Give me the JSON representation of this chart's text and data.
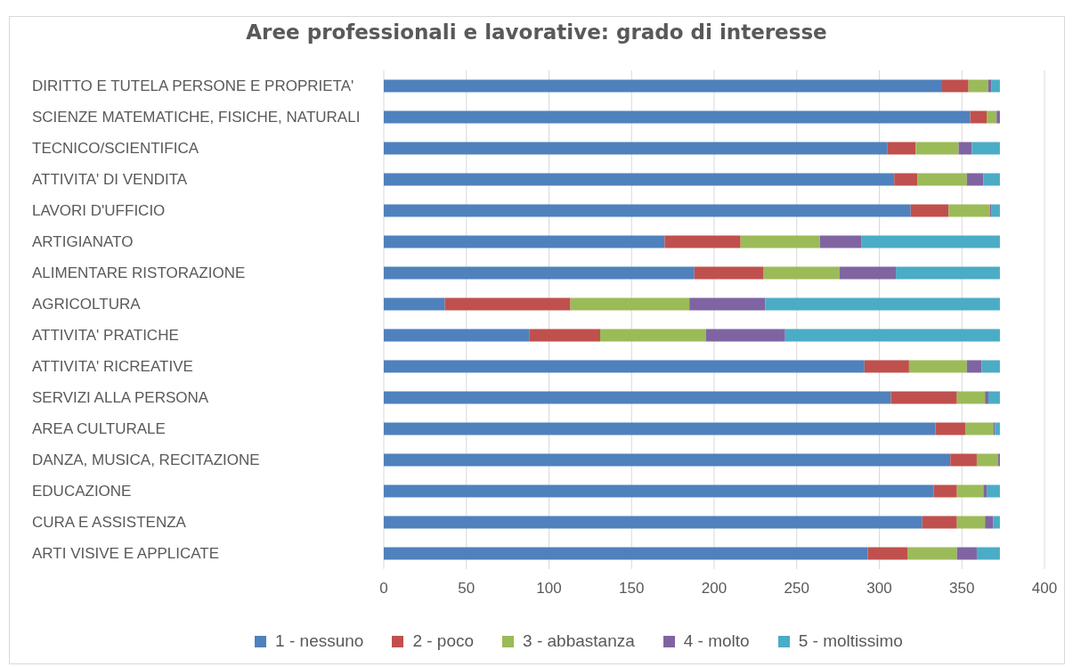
{
  "chart_data": {
    "type": "bar",
    "orientation": "horizontal",
    "stacked": true,
    "title": "Aree professionali e lavorative: grado di interesse",
    "categories": [
      "DIRITTO E TUTELA PERSONE E PROPRIETA'",
      "SCIENZE MATEMATICHE, FISICHE, NATURALI",
      "TECNICO/SCIENTIFICA",
      "ATTIVITA' DI VENDITA",
      "LAVORI D'UFFICIO",
      "ARTIGIANATO",
      "ALIMENTARE RISTORAZIONE",
      "AGRICOLTURA",
      "ATTIVITA' PRATICHE",
      "ATTIVITA' RICREATIVE",
      "SERVIZI ALLA PERSONA",
      "AREA CULTURALE",
      "DANZA, MUSICA, RECITAZIONE",
      "EDUCAZIONE",
      "CURA E ASSISTENZA",
      "ARTI VISIVE E APPLICATE"
    ],
    "series": [
      {
        "name": "1 - nessuno",
        "color": "#4f81bd",
        "values": [
          338,
          355,
          305,
          309,
          319,
          170,
          188,
          37,
          88,
          291,
          307,
          334,
          343,
          333,
          326,
          293
        ]
      },
      {
        "name": "2 - poco",
        "color": "#c0504d",
        "values": [
          16,
          10,
          17,
          14,
          23,
          46,
          42,
          76,
          43,
          27,
          40,
          18,
          16,
          14,
          21,
          24
        ]
      },
      {
        "name": "3 - abbastanza",
        "color": "#9bbb59",
        "values": [
          12,
          6,
          26,
          30,
          25,
          48,
          46,
          72,
          64,
          35,
          17,
          17,
          13,
          16,
          17,
          30
        ]
      },
      {
        "name": "4 - molto",
        "color": "#8064a2",
        "values": [
          2,
          2,
          8,
          10,
          1,
          25,
          34,
          46,
          48,
          9,
          2,
          1,
          1,
          2,
          5,
          12
        ]
      },
      {
        "name": "5 - moltissimo",
        "color": "#4bacc6",
        "values": [
          5,
          0,
          17,
          10,
          5,
          84,
          63,
          142,
          130,
          11,
          7,
          3,
          0,
          8,
          4,
          14
        ]
      }
    ],
    "xlim": [
      0,
      400
    ],
    "xticks": [
      0,
      50,
      100,
      150,
      200,
      250,
      300,
      350,
      400
    ],
    "grid": "x",
    "legend": "bottom"
  }
}
